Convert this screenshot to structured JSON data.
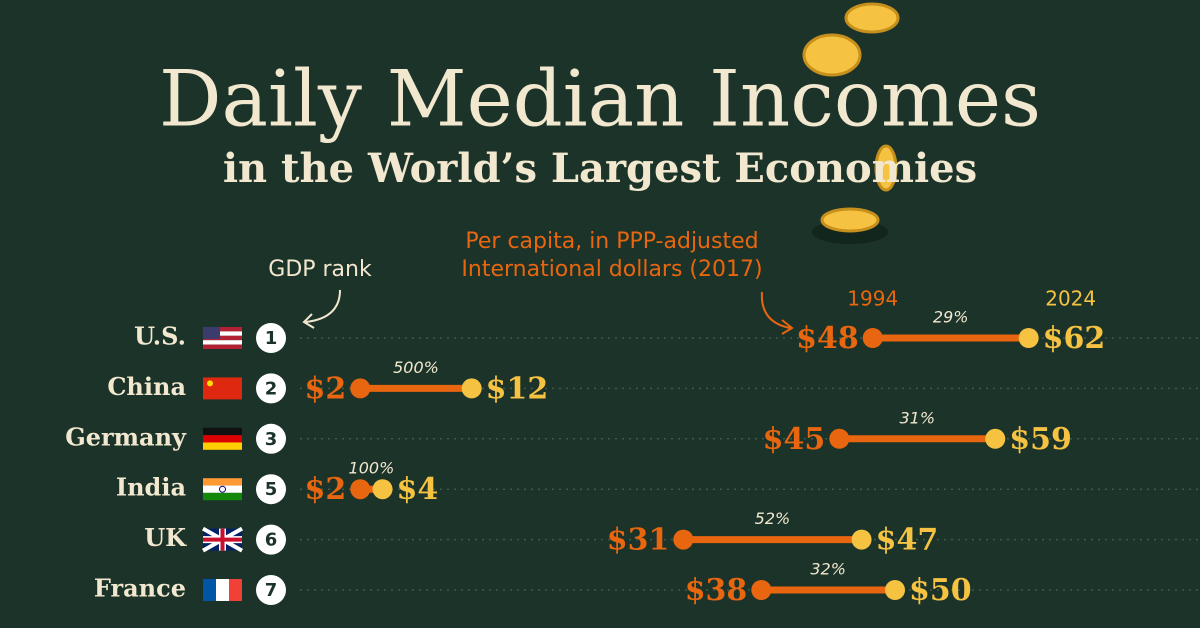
{
  "chart_data": {
    "type": "dumbbell",
    "title": "Daily Median Incomes",
    "subtitle": "in the World’s Largest Economies",
    "note_lines": [
      "Per capita, in PPP-adjusted",
      "International dollars (2017)"
    ],
    "rank_label": "GDP rank",
    "categories": [
      "U.S.",
      "China",
      "Germany",
      "India",
      "UK",
      "France"
    ],
    "ranks": [
      1,
      2,
      3,
      5,
      6,
      7
    ],
    "series": [
      {
        "name": "1994",
        "color": "#e8660f",
        "values": [
          48,
          2,
          45,
          2,
          31,
          38
        ],
        "value_labels": [
          "$48",
          "$2",
          "$45",
          "$2",
          "$31",
          "$38"
        ]
      },
      {
        "name": "2024",
        "color": "#f5c242",
        "values": [
          62,
          12,
          59,
          4,
          47,
          50
        ],
        "value_labels": [
          "$62",
          "$12",
          "$59",
          "$4",
          "$47",
          "$50"
        ]
      }
    ],
    "change": {
      "values": [
        29,
        500,
        31,
        100,
        52,
        32
      ],
      "value_labels": [
        "29%",
        "500%",
        "31%",
        "100%",
        "52%",
        "32%"
      ]
    }
  }
}
